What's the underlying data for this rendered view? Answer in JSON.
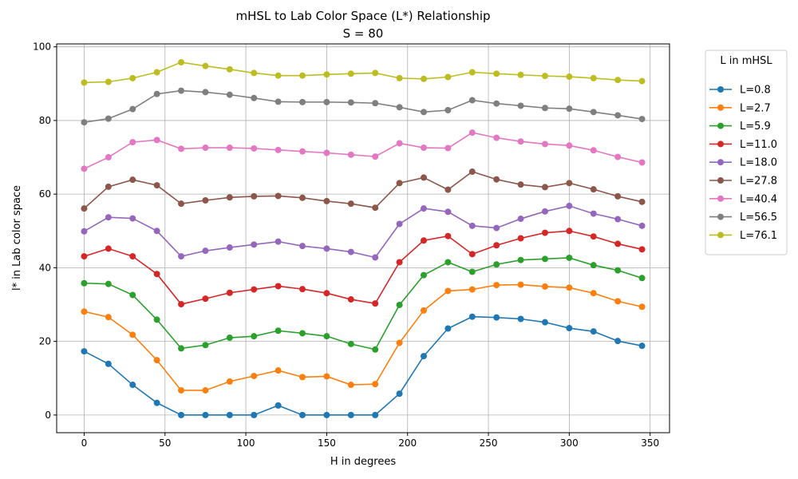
{
  "chart_data": {
    "type": "line",
    "title": "mHSL to Lab Color Space (L*) Relationship",
    "subtitle": "S = 80",
    "xlabel": "H in degrees",
    "ylabel": "l* in Lab color space",
    "xlim": [
      -17,
      362
    ],
    "ylim": [
      -4.8,
      100.8
    ],
    "xticks": [
      0,
      50,
      100,
      150,
      200,
      250,
      300,
      350
    ],
    "yticks": [
      0,
      20,
      40,
      60,
      80,
      100
    ],
    "grid": true,
    "legend_title": "L in mHSL",
    "legend_position": "outside-right",
    "x": [
      0,
      15,
      30,
      45,
      60,
      75,
      90,
      105,
      120,
      135,
      150,
      165,
      180,
      195,
      210,
      225,
      240,
      255,
      270,
      285,
      300,
      315,
      330,
      345
    ],
    "series": [
      {
        "name": "L=0.8",
        "color": "#1f77b4",
        "values": [
          17.3,
          13.9,
          8.2,
          3.3,
          0,
          0,
          0,
          0,
          2.6,
          0,
          0,
          0,
          0,
          5.8,
          16.0,
          23.5,
          26.7,
          26.5,
          26.1,
          25.2,
          23.6,
          22.7,
          20.1,
          18.8
        ]
      },
      {
        "name": "L=2.7",
        "color": "#ff7f0e",
        "values": [
          28.1,
          26.6,
          21.8,
          14.9,
          6.7,
          6.7,
          9.1,
          10.6,
          12.1,
          10.3,
          10.5,
          8.2,
          8.4,
          19.6,
          28.4,
          33.7,
          34.1,
          35.3,
          35.4,
          34.9,
          34.6,
          33.1,
          30.9,
          29.4
        ]
      },
      {
        "name": "L=5.9",
        "color": "#2ca02c",
        "values": [
          35.8,
          35.6,
          32.6,
          25.9,
          18.1,
          19.0,
          21.0,
          21.4,
          22.9,
          22.2,
          21.4,
          19.3,
          17.8,
          29.9,
          38.0,
          41.5,
          38.9,
          40.9,
          42.1,
          42.4,
          42.7,
          40.7,
          39.3,
          37.2
        ]
      },
      {
        "name": "L=11.0",
        "color": "#d62728",
        "values": [
          43.1,
          45.2,
          43.1,
          38.3,
          30.1,
          31.6,
          33.2,
          34.1,
          35.0,
          34.2,
          33.1,
          31.4,
          30.3,
          41.5,
          47.4,
          48.6,
          43.7,
          46.1,
          48.0,
          49.5,
          50.0,
          48.5,
          46.5,
          45.0
        ]
      },
      {
        "name": "L=18.0",
        "color": "#9467bd",
        "values": [
          49.9,
          53.7,
          53.4,
          50.0,
          43.1,
          44.6,
          45.5,
          46.3,
          47.1,
          45.9,
          45.2,
          44.3,
          42.8,
          51.9,
          56.1,
          55.2,
          51.4,
          50.8,
          53.3,
          55.3,
          56.8,
          54.7,
          53.2,
          51.4
        ]
      },
      {
        "name": "L=27.8",
        "color": "#8c564b",
        "values": [
          56.1,
          62.0,
          63.9,
          62.4,
          57.4,
          58.3,
          59.1,
          59.4,
          59.5,
          59.0,
          58.1,
          57.4,
          56.3,
          63.0,
          64.5,
          61.2,
          66.1,
          64.0,
          62.6,
          61.9,
          63.0,
          61.3,
          59.4,
          57.9
        ]
      },
      {
        "name": "L=40.4",
        "color": "#e377c2",
        "values": [
          66.9,
          70.0,
          74.1,
          74.7,
          72.3,
          72.6,
          72.6,
          72.4,
          72.0,
          71.6,
          71.2,
          70.7,
          70.2,
          73.8,
          72.6,
          72.5,
          76.7,
          75.3,
          74.3,
          73.6,
          73.2,
          71.9,
          70.1,
          68.6
        ]
      },
      {
        "name": "L=56.5",
        "color": "#7f7f7f",
        "values": [
          79.5,
          80.5,
          83.1,
          87.2,
          88.1,
          87.7,
          87.0,
          86.1,
          85.1,
          85.0,
          85.0,
          84.9,
          84.7,
          83.6,
          82.3,
          82.8,
          85.5,
          84.6,
          84.0,
          83.4,
          83.2,
          82.3,
          81.4,
          80.4
        ]
      },
      {
        "name": "L=76.1",
        "color": "#bcbd22",
        "values": [
          90.3,
          90.5,
          91.5,
          93.1,
          95.8,
          94.8,
          93.9,
          92.9,
          92.2,
          92.2,
          92.5,
          92.7,
          92.9,
          91.5,
          91.3,
          91.8,
          93.1,
          92.7,
          92.4,
          92.1,
          91.9,
          91.5,
          91.0,
          90.7
        ]
      }
    ]
  }
}
